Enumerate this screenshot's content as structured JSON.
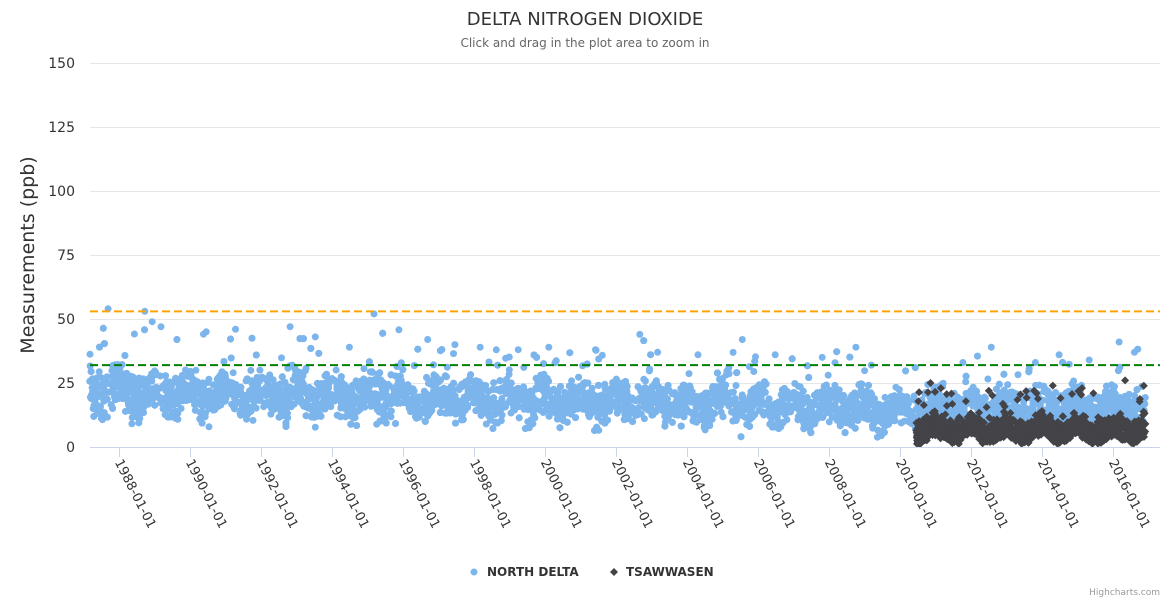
{
  "chart_data": {
    "type": "scatter",
    "title": "DELTA NITROGEN DIOXIDE",
    "subtitle": "Click and drag in the plot area to zoom in",
    "ylabel": "Measurements (ppb)",
    "xlabel": "",
    "ylim": [
      0,
      150
    ],
    "yticks": [
      "0",
      "25",
      "50",
      "75",
      "100",
      "125",
      "150"
    ],
    "ytick_values": [
      0,
      25,
      50,
      75,
      100,
      125,
      150
    ],
    "xlim": [
      "1987-03-01",
      "2016-12-31"
    ],
    "xticks": [
      "1988-01-01",
      "1990-01-01",
      "1992-01-01",
      "1994-01-01",
      "1996-01-01",
      "1998-01-01",
      "2000-01-01",
      "2002-01-01",
      "2004-01-01",
      "2006-01-01",
      "2008-01-01",
      "2010-01-01",
      "2012-01-01",
      "2014-01-01",
      "2016-01-01"
    ],
    "grid": true,
    "legend_position": "bottom-center",
    "plot_lines": [
      {
        "value": 53,
        "color": "#ffa500",
        "style": "dashed"
      },
      {
        "value": 32,
        "color": "#008000",
        "style": "dashed"
      }
    ],
    "series": [
      {
        "name": "NORTH DELTA",
        "color": "#7cb5ec",
        "marker": "circle",
        "start": "1987-03-01",
        "end": "2016-11-30",
        "yearly_summary": {
          "years": [
            1987,
            1988,
            1989,
            1990,
            1991,
            1992,
            1993,
            1994,
            1995,
            1996,
            1997,
            1998,
            1999,
            2000,
            2001,
            2002,
            2003,
            2004,
            2005,
            2006,
            2007,
            2008,
            2009,
            2010,
            2011,
            2012,
            2013,
            2014,
            2015,
            2016
          ],
          "typical_low": [
            9,
            9,
            8,
            8,
            8,
            8,
            7,
            7,
            7,
            7,
            7,
            7,
            7,
            7,
            6,
            6,
            5,
            5,
            5,
            5,
            4,
            4,
            4,
            4,
            4,
            4,
            4,
            4,
            4,
            4
          ],
          "typical_high": [
            35,
            35,
            34,
            33,
            33,
            34,
            33,
            32,
            33,
            31,
            31,
            31,
            30,
            30,
            30,
            29,
            29,
            28,
            28,
            27,
            27,
            27,
            26,
            26,
            27,
            26,
            26,
            27,
            26,
            26
          ],
          "max": [
            54,
            53,
            47,
            45,
            46,
            47,
            43,
            39,
            52,
            42,
            40,
            39,
            38,
            39,
            38,
            44,
            37,
            36,
            42,
            36,
            35,
            39,
            32,
            31,
            33,
            39,
            33,
            36,
            34,
            41
          ]
        }
      },
      {
        "name": "TSAWWASEN",
        "color": "#434348",
        "marker": "diamond",
        "start": "2010-06-15",
        "end": "2016-11-30",
        "yearly_summary": {
          "years": [
            2010,
            2011,
            2012,
            2013,
            2014,
            2015,
            2016
          ],
          "typical_low": [
            2,
            2,
            2,
            2,
            2,
            2,
            2
          ],
          "typical_high": [
            16,
            15,
            15,
            16,
            16,
            15,
            15
          ],
          "max": [
            25,
            23,
            22,
            22,
            24,
            23,
            26
          ]
        }
      }
    ]
  },
  "credits": "Highcharts.com"
}
